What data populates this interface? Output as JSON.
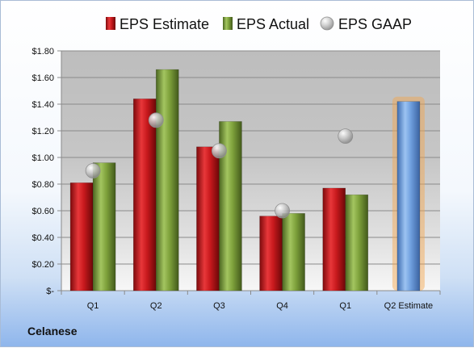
{
  "company": "Celanese",
  "colors": {
    "estimate": "#c8191d",
    "actual": "#7ea13b",
    "gaap": "#bfbfbf",
    "forecast": "#6f9fde",
    "forecast_glow": "#f5a54a"
  },
  "chart_data": {
    "type": "bar",
    "categories": [
      "Q1",
      "Q2",
      "Q3",
      "Q4",
      "Q1",
      "Q2 Estimate"
    ],
    "series": [
      {
        "name": "EPS Estimate",
        "kind": "bar",
        "values": [
          0.81,
          1.44,
          1.08,
          0.56,
          0.77,
          null
        ]
      },
      {
        "name": "EPS Actual",
        "kind": "bar",
        "values": [
          0.96,
          1.66,
          1.27,
          0.58,
          0.72,
          null
        ]
      },
      {
        "name": "EPS GAAP",
        "kind": "point",
        "values": [
          0.9,
          1.28,
          1.05,
          0.6,
          1.16,
          null
        ]
      }
    ],
    "forecast": {
      "category_index": 5,
      "value": 1.42
    },
    "yticks": [
      "$1.80",
      "$1.60",
      "$1.40",
      "$1.20",
      "$1.00",
      "$0.80",
      "$0.60",
      "$0.40",
      "$0.20",
      "$-"
    ],
    "ytick_values": [
      1.8,
      1.6,
      1.4,
      1.2,
      1.0,
      0.8,
      0.6,
      0.4,
      0.2,
      0
    ],
    "ylim": [
      0,
      1.8
    ],
    "grid": true,
    "legend_position": "top"
  }
}
